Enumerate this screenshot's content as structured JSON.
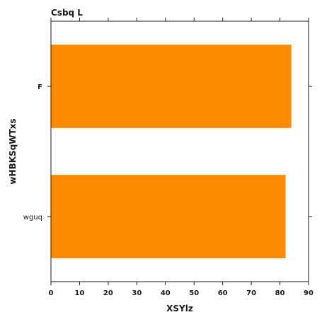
{
  "chart_data": {
    "type": "bar",
    "orientation": "horizontal",
    "title": "Csbq L",
    "xlabel": "XSYlz",
    "ylabel": "wHBKSqWTxs",
    "categories": [
      "wguq",
      "F"
    ],
    "values": [
      82,
      84
    ],
    "xlim": [
      0,
      90
    ],
    "xticks": [
      0,
      10,
      20,
      30,
      40,
      50,
      60,
      70,
      80,
      90
    ],
    "bar_color": "#ff8c00",
    "grid": false,
    "legend": "none"
  }
}
